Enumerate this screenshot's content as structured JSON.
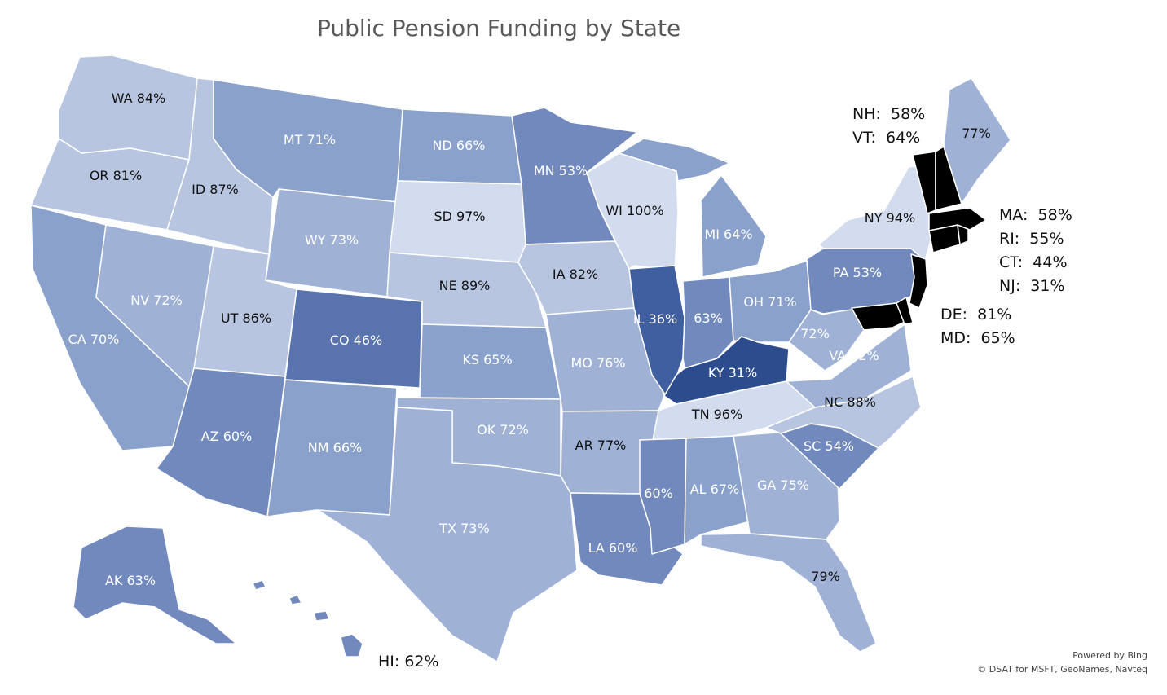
{
  "title": "Public Pension Funding by State",
  "colors": {
    "very_light": "#d2dcee",
    "light": "#b7c5e1",
    "mid_light": "#9fb2d6",
    "mid": "#8aa1cb",
    "mid_dark": "#7289bd",
    "dark": "#5873ad",
    "darker": "#3f5fa0",
    "darkest": "#2d4c8e",
    "border": "#ffffff",
    "text_dark": "#111111",
    "text_light": "#ffffff"
  },
  "states": [
    {
      "code": "WA",
      "label": "WA 84%",
      "value": 84
    },
    {
      "code": "OR",
      "label": "OR 81%",
      "value": 81
    },
    {
      "code": "CA",
      "label": "CA 70%",
      "value": 70
    },
    {
      "code": "ID",
      "label": "ID 87%",
      "value": 87
    },
    {
      "code": "NV",
      "label": "NV 72%",
      "value": 72
    },
    {
      "code": "MT",
      "label": "MT 71%",
      "value": 71
    },
    {
      "code": "WY",
      "label": "WY 73%",
      "value": 73
    },
    {
      "code": "UT",
      "label": "UT 86%",
      "value": 86
    },
    {
      "code": "AZ",
      "label": "AZ 60%",
      "value": 60
    },
    {
      "code": "CO",
      "label": "CO 46%",
      "value": 46
    },
    {
      "code": "NM",
      "label": "NM 66%",
      "value": 66
    },
    {
      "code": "ND",
      "label": "ND 66%",
      "value": 66
    },
    {
      "code": "SD",
      "label": "SD 97%",
      "value": 97
    },
    {
      "code": "NE",
      "label": "NE 89%",
      "value": 89
    },
    {
      "code": "KS",
      "label": "KS 65%",
      "value": 65
    },
    {
      "code": "OK",
      "label": "OK 72%",
      "value": 72
    },
    {
      "code": "TX",
      "label": "TX 73%",
      "value": 73
    },
    {
      "code": "MN",
      "label": "MN 53%",
      "value": 53
    },
    {
      "code": "IA",
      "label": "IA 82%",
      "value": 82
    },
    {
      "code": "MO",
      "label": "MO 76%",
      "value": 76
    },
    {
      "code": "AR",
      "label": "AR 77%",
      "value": 77
    },
    {
      "code": "LA",
      "label": "LA 60%",
      "value": 60
    },
    {
      "code": "WI",
      "label": "WI 100%",
      "value": 100
    },
    {
      "code": "IL",
      "label": "IL 36%",
      "value": 36
    },
    {
      "code": "MI",
      "label": "MI 64%",
      "value": 64
    },
    {
      "code": "IN",
      "label": "63%",
      "value": 63
    },
    {
      "code": "OH",
      "label": "OH 71%",
      "value": 71
    },
    {
      "code": "KY",
      "label": "KY 31%",
      "value": 31
    },
    {
      "code": "TN",
      "label": "TN 96%",
      "value": 96
    },
    {
      "code": "MS",
      "label": "60%",
      "value": 60
    },
    {
      "code": "AL",
      "label": "AL 67%",
      "value": 67
    },
    {
      "code": "GA",
      "label": "GA 75%",
      "value": 75
    },
    {
      "code": "FL",
      "label": "79%",
      "value": 79
    },
    {
      "code": "SC",
      "label": "SC 54%",
      "value": 54
    },
    {
      "code": "NC",
      "label": "NC 88%",
      "value": 88
    },
    {
      "code": "VA",
      "label": "VA 72%",
      "value": 72
    },
    {
      "code": "WV",
      "label": "72%",
      "value": 72
    },
    {
      "code": "PA",
      "label": "PA 53%",
      "value": 53
    },
    {
      "code": "NY",
      "label": "NY 94%",
      "value": 94
    },
    {
      "code": "ME",
      "label": "77%",
      "value": 77
    },
    {
      "code": "AK",
      "label": "AK 63%",
      "value": 63
    },
    {
      "code": "HI",
      "label": "",
      "value": 62
    }
  ],
  "callouts": {
    "nh_vt": "NH:  58%\nVT:  64%",
    "ma_ri_ct_nj": "MA:  58%\nRI:  55%\nCT:  44%\nNJ:  31%",
    "de_md": "DE:  81%\nMD:  65%",
    "hi": "HI: 62%"
  },
  "credits": {
    "line1": "Powered by Bing",
    "line2": "© DSAT for MSFT, GeoNames, Navteq"
  }
}
